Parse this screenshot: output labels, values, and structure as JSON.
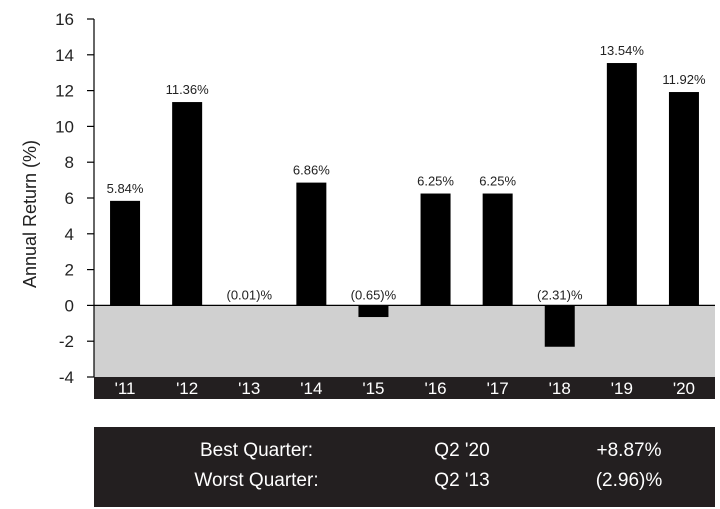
{
  "chart_data": {
    "type": "bar",
    "categories": [
      "'11",
      "'12",
      "'13",
      "'14",
      "'15",
      "'16",
      "'17",
      "'18",
      "'19",
      "'20"
    ],
    "values": [
      5.84,
      11.36,
      -0.01,
      6.86,
      -0.65,
      6.25,
      6.25,
      -2.31,
      13.54,
      11.92
    ],
    "data_labels": [
      "5.84%",
      "11.36%",
      "(0.01)%",
      "6.86%",
      "(0.65)%",
      "6.25%",
      "6.25%",
      "(2.31)%",
      "13.54%",
      "11.92%"
    ],
    "ylabel": "Annual Return (%)",
    "xlabel": "",
    "ylim": [
      -4,
      16
    ],
    "yticks": [
      -4,
      -2,
      0,
      2,
      4,
      6,
      8,
      10,
      12,
      14,
      16
    ],
    "grid": false,
    "colors": {
      "bar": "#000000",
      "negative_region": "#d0d0d0",
      "x_axis_band": "#231f20"
    }
  },
  "summary": {
    "rows": [
      {
        "label": "Best Quarter:",
        "quarter": "Q2 '20",
        "value": "+8.87%"
      },
      {
        "label": "Worst Quarter:",
        "quarter": "Q2 '13",
        "value": "(2.96)%"
      }
    ]
  }
}
